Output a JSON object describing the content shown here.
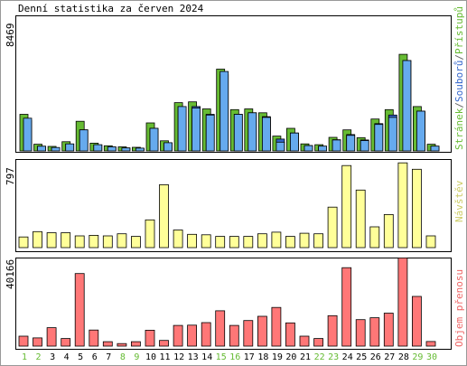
{
  "chart_data": [
    {
      "type": "bar",
      "title": "Denní statistika za červen 2024",
      "y_max_label": "8469",
      "legend_parts": [
        {
          "text": "Stránek",
          "color": "#66bb33"
        },
        {
          "text": "/",
          "color": "#666666"
        },
        {
          "text": "Souborů",
          "color": "#3366cc"
        },
        {
          "text": "/",
          "color": "#666666"
        },
        {
          "text": "Přístupů",
          "color": "#66bb33"
        }
      ],
      "categories": [
        "1",
        "2",
        "3",
        "4",
        "5",
        "6",
        "7",
        "8",
        "9",
        "10",
        "11",
        "12",
        "13",
        "14",
        "15",
        "16",
        "17",
        "18",
        "19",
        "20",
        "21",
        "22",
        "23",
        "24",
        "25",
        "26",
        "27",
        "28",
        "29",
        "30"
      ],
      "ylim": [
        0,
        8469
      ],
      "series": [
        {
          "name": "Přístupů",
          "color": "#66bb33",
          "values": [
            2350,
            430,
            290,
            590,
            1900,
            500,
            330,
            260,
            230,
            1800,
            650,
            3100,
            3150,
            2700,
            5250,
            2650,
            2700,
            2450,
            950,
            1450,
            450,
            400,
            870,
            1350,
            850,
            2050,
            2650,
            6200,
            2850,
            430
          ]
        },
        {
          "name": "Souborů",
          "color": "#3366cc",
          "values": [
            1950,
            300,
            210,
            430,
            1350,
            380,
            250,
            190,
            170,
            1450,
            520,
            2850,
            2850,
            2350,
            4900,
            2350,
            2450,
            2200,
            760,
            1150,
            340,
            300,
            720,
            1050,
            700,
            1750,
            2300,
            5800,
            2550,
            300
          ]
        },
        {
          "name": "Stránek",
          "color": "#66aaee",
          "values": [
            2100,
            300,
            220,
            450,
            1350,
            400,
            260,
            190,
            180,
            1450,
            530,
            2850,
            2750,
            2300,
            5100,
            2350,
            2450,
            2150,
            560,
            1150,
            340,
            310,
            700,
            1000,
            660,
            1700,
            2150,
            5800,
            2550,
            310
          ]
        }
      ]
    },
    {
      "type": "bar",
      "y_max_label": "797",
      "legend": "Návštěv",
      "legend_color": "#cccc66",
      "categories": [
        "1",
        "2",
        "3",
        "4",
        "5",
        "6",
        "7",
        "8",
        "9",
        "10",
        "11",
        "12",
        "13",
        "14",
        "15",
        "16",
        "17",
        "18",
        "19",
        "20",
        "21",
        "22",
        "23",
        "24",
        "25",
        "26",
        "27",
        "28",
        "29",
        "30"
      ],
      "ylim": [
        0,
        797
      ],
      "series": [
        {
          "name": "Návštěv",
          "color": "#ffff99",
          "values": [
            100,
            150,
            140,
            140,
            110,
            115,
            110,
            130,
            105,
            260,
            590,
            165,
            125,
            120,
            105,
            105,
            105,
            130,
            145,
            105,
            135,
            130,
            380,
            770,
            540,
            195,
            310,
            795,
            735,
            110
          ]
        }
      ]
    },
    {
      "type": "bar",
      "y_max_label": "40166",
      "legend": "Objem přenosu",
      "legend_color": "#ee6666",
      "categories": [
        "1",
        "2",
        "3",
        "4",
        "5",
        "6",
        "7",
        "8",
        "9",
        "10",
        "11",
        "12",
        "13",
        "14",
        "15",
        "16",
        "17",
        "18",
        "19",
        "20",
        "21",
        "22",
        "23",
        "24",
        "25",
        "26",
        "27",
        "28",
        "29",
        "30"
      ],
      "ylim": [
        0,
        40166
      ],
      "series": [
        {
          "name": "Objem přenosu",
          "color": "#ff7777",
          "values": [
            4700,
            3900,
            8700,
            3600,
            34300,
            7600,
            2100,
            1200,
            2100,
            7500,
            2700,
            9800,
            9900,
            11100,
            16700,
            9800,
            12100,
            14100,
            18300,
            11000,
            4700,
            3600,
            14400,
            37100,
            12500,
            13400,
            15600,
            41700,
            23500,
            2200
          ]
        }
      ]
    }
  ],
  "x_labels": [
    {
      "text": "1",
      "color": "#66bb33"
    },
    {
      "text": "2",
      "color": "#66bb33"
    },
    {
      "text": "3",
      "color": "#000000"
    },
    {
      "text": "4",
      "color": "#000000"
    },
    {
      "text": "5",
      "color": "#000000"
    },
    {
      "text": "6",
      "color": "#000000"
    },
    {
      "text": "7",
      "color": "#000000"
    },
    {
      "text": "8",
      "color": "#66bb33"
    },
    {
      "text": "9",
      "color": "#66bb33"
    },
    {
      "text": "10",
      "color": "#000000"
    },
    {
      "text": "11",
      "color": "#000000"
    },
    {
      "text": "12",
      "color": "#000000"
    },
    {
      "text": "13",
      "color": "#000000"
    },
    {
      "text": "14",
      "color": "#000000"
    },
    {
      "text": "15",
      "color": "#66bb33"
    },
    {
      "text": "16",
      "color": "#66bb33"
    },
    {
      "text": "17",
      "color": "#000000"
    },
    {
      "text": "18",
      "color": "#000000"
    },
    {
      "text": "19",
      "color": "#000000"
    },
    {
      "text": "20",
      "color": "#000000"
    },
    {
      "text": "21",
      "color": "#000000"
    },
    {
      "text": "22",
      "color": "#66bb33"
    },
    {
      "text": "23",
      "color": "#66bb33"
    },
    {
      "text": "24",
      "color": "#000000"
    },
    {
      "text": "25",
      "color": "#000000"
    },
    {
      "text": "26",
      "color": "#000000"
    },
    {
      "text": "27",
      "color": "#000000"
    },
    {
      "text": "28",
      "color": "#000000"
    },
    {
      "text": "29",
      "color": "#66bb33"
    },
    {
      "text": "30",
      "color": "#66bb33"
    }
  ],
  "colors": {
    "background": "#ffffff",
    "panel_border": "#000000",
    "outer_border": "#999999"
  }
}
